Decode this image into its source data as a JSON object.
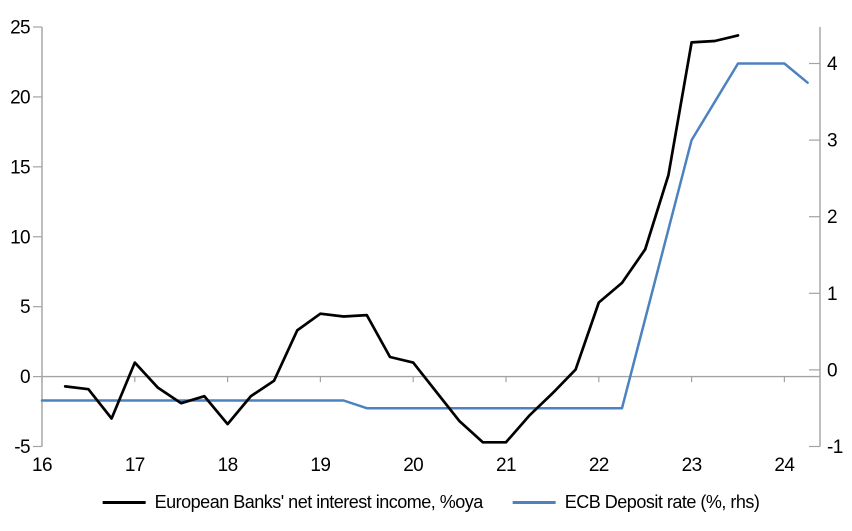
{
  "chart_data": {
    "type": "line",
    "title": "",
    "grid": "zero-line-only",
    "legend_position": "bottom-center",
    "axis_color": "#a3a3a3",
    "text_color": "#000000",
    "x_axis": {
      "min": 16,
      "max": 24.3,
      "ticks": [
        "16",
        "17",
        "18",
        "19",
        "20",
        "21",
        "22",
        "23",
        "24"
      ]
    },
    "left_axis": {
      "min": -5,
      "max": 25,
      "ticks": [
        25,
        20,
        15,
        10,
        5,
        0,
        -5
      ]
    },
    "right_axis": {
      "min": -1,
      "max": 4.48,
      "ticks": [
        4,
        3,
        2,
        1,
        0,
        -1
      ]
    },
    "series": [
      {
        "name": "European Banks' net interest income, %oya",
        "axis": "left",
        "color": "#000000",
        "points": [
          [
            16.25,
            -0.7
          ],
          [
            16.5,
            -0.9
          ],
          [
            16.75,
            -3.0
          ],
          [
            17.0,
            1.0
          ],
          [
            17.25,
            -0.8
          ],
          [
            17.5,
            -1.9
          ],
          [
            17.75,
            -1.4
          ],
          [
            18.0,
            -3.4
          ],
          [
            18.25,
            -1.4
          ],
          [
            18.5,
            -0.3
          ],
          [
            18.75,
            3.3
          ],
          [
            19.0,
            4.5
          ],
          [
            19.25,
            4.3
          ],
          [
            19.5,
            4.4
          ],
          [
            19.75,
            1.4
          ],
          [
            20.0,
            1.0
          ],
          [
            20.25,
            -1.1
          ],
          [
            20.5,
            -3.2
          ],
          [
            20.75,
            -4.7
          ],
          [
            21.0,
            -4.7
          ],
          [
            21.25,
            -2.8
          ],
          [
            21.5,
            -1.2
          ],
          [
            21.75,
            0.5
          ],
          [
            22.0,
            5.3
          ],
          [
            22.25,
            6.7
          ],
          [
            22.5,
            9.1
          ],
          [
            22.75,
            14.4
          ],
          [
            23.0,
            23.9
          ],
          [
            23.25,
            24.0
          ],
          [
            23.5,
            24.4
          ]
        ]
      },
      {
        "name": "ECB Deposit rate (%, rhs)",
        "axis": "right",
        "color": "#4c82bf",
        "points": [
          [
            16.0,
            -0.4
          ],
          [
            19.25,
            -0.4
          ],
          [
            19.5,
            -0.5
          ],
          [
            22.25,
            -0.5
          ],
          [
            23.0,
            3.0
          ],
          [
            23.5,
            4.0
          ],
          [
            24.0,
            4.0
          ],
          [
            24.25,
            3.75
          ]
        ]
      }
    ]
  }
}
